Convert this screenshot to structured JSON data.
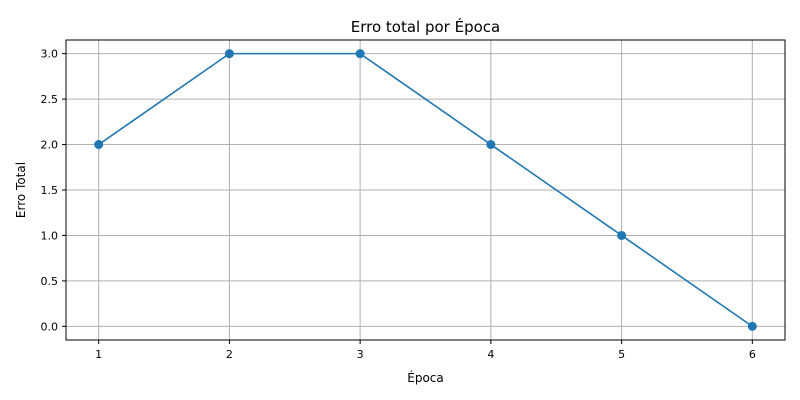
{
  "chart_data": {
    "type": "line",
    "title": "Erro total por Época",
    "xlabel": "Época",
    "ylabel": "Erro Total",
    "x": [
      1,
      2,
      3,
      4,
      5,
      6
    ],
    "series": [
      {
        "values": [
          2,
          3,
          3,
          2,
          1,
          0
        ],
        "color": "#1f77b4",
        "marker": "circle"
      }
    ],
    "xlim": [
      0.75,
      6.25
    ],
    "ylim": [
      -0.15,
      3.15
    ],
    "xticks": [
      1,
      2,
      3,
      4,
      5,
      6
    ],
    "xtick_labels": [
      "1",
      "2",
      "3",
      "4",
      "5",
      "6"
    ],
    "yticks": [
      0,
      0.5,
      1,
      1.5,
      2,
      2.5,
      3
    ],
    "ytick_labels": [
      "0.0",
      "0.5",
      "1.0",
      "1.5",
      "2.0",
      "2.5",
      "3.0"
    ],
    "grid": true,
    "legend": "none"
  }
}
